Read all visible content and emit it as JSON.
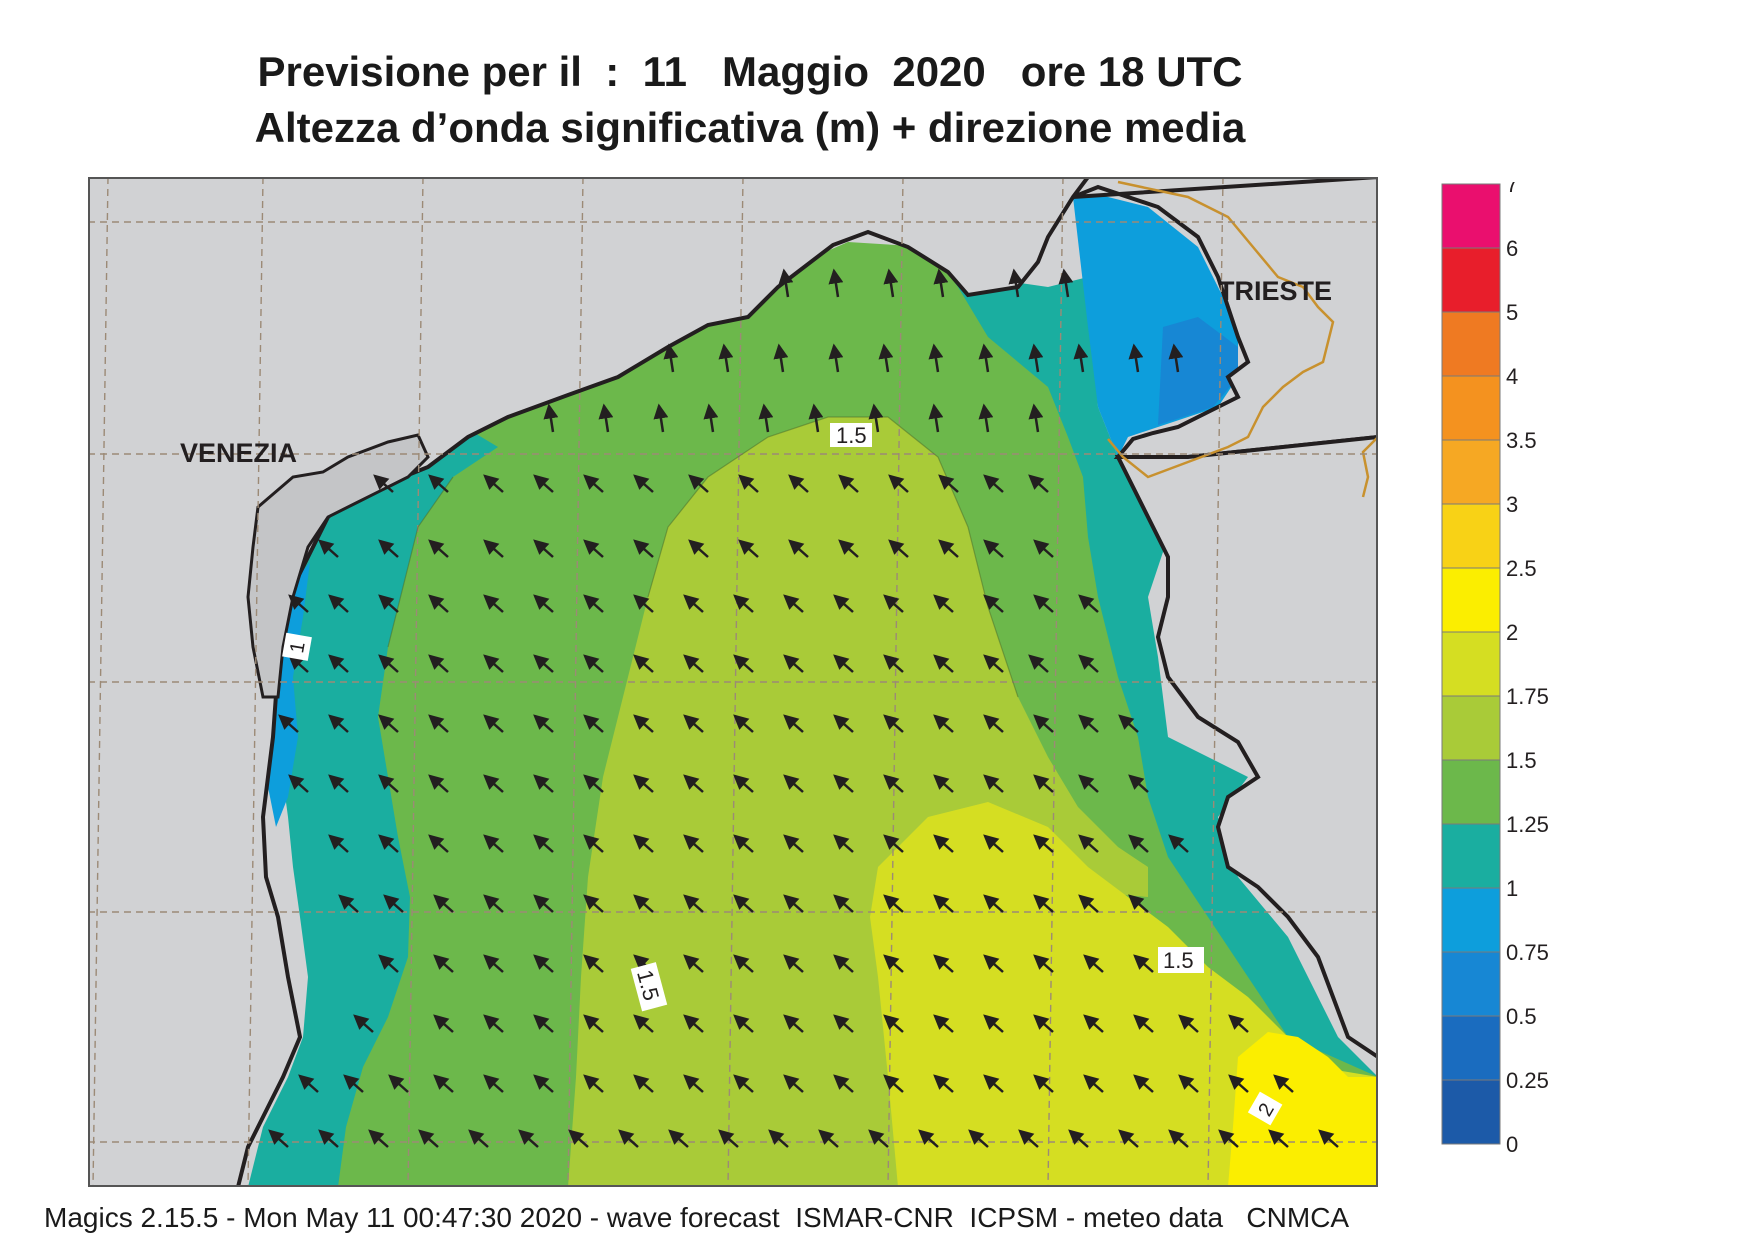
{
  "title": {
    "line1": "Previsione per il  :  11   Maggio  2020   ore 18 UTC",
    "line2": "Altezza d’onda significativa (m) + direzione media"
  },
  "map": {
    "place_labels": [
      "VENEZIA",
      "TRIESTE"
    ],
    "contour_labels": [
      "1.5",
      "1",
      "1.5",
      "1.5",
      "2"
    ],
    "arrow_direction": "north-west"
  },
  "legend": {
    "levels": [
      "7",
      "6",
      "5",
      "4",
      "3.5",
      "3",
      "2.5",
      "2",
      "1.75",
      "1.5",
      "1.25",
      "1",
      "0.75",
      "0.5",
      "0.25",
      "0"
    ],
    "colors": [
      "#ea0f6e",
      "#e81e2b",
      "#ef7a22",
      "#f4921f",
      "#f6a823",
      "#f8d216",
      "#fbee00",
      "#d5de22",
      "#a9cb38",
      "#6cb84b",
      "#1aaea0",
      "#0d9edc",
      "#1787d4",
      "#1a6cbf",
      "#1c5aa8"
    ]
  },
  "colors": {
    "land": "#d1d2d4",
    "coast": "#231f20",
    "border": "#c8912e",
    "grid": "#9c8a76",
    "arrow": "#231f20"
  },
  "footer": "Magics 2.15.5 - Mon May 11 00:47:30 2020 - wave forecast  ISMAR-CNR  ICPSM - meteo data   CNMCA"
}
